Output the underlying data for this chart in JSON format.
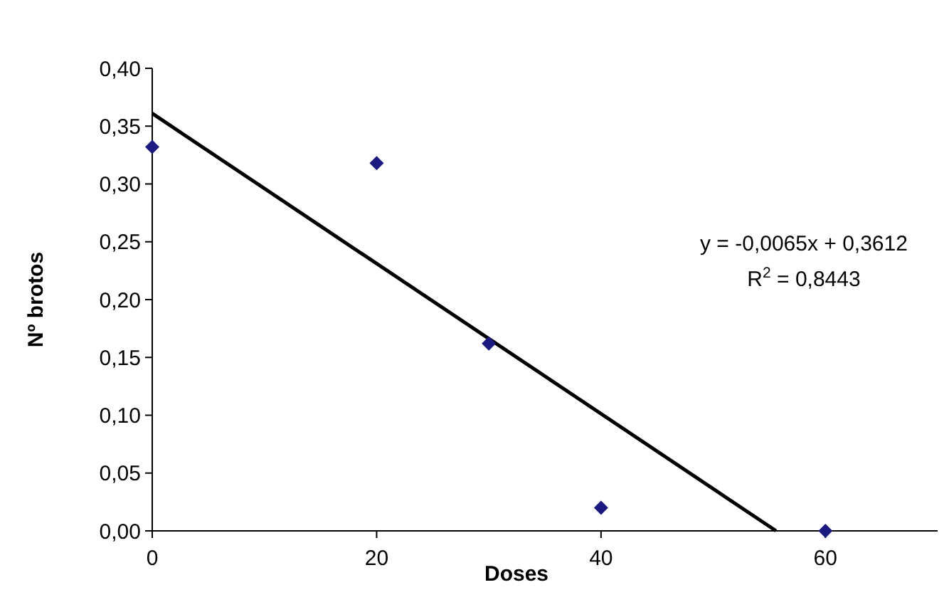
{
  "chart_data": {
    "type": "scatter",
    "xlabel": "Doses",
    "ylabel": "Nº brotos",
    "xlim": [
      0,
      70
    ],
    "xticks": [
      0,
      20,
      40,
      60
    ],
    "ylim": [
      0,
      0.4
    ],
    "yticks": [
      {
        "value": 0,
        "label": "0,00"
      },
      {
        "value": 0.05,
        "label": "0,05"
      },
      {
        "value": 0.1,
        "label": "0,10"
      },
      {
        "value": 0.15,
        "label": "0,15"
      },
      {
        "value": 0.2,
        "label": "0,20"
      },
      {
        "value": 0.25,
        "label": "0,25"
      },
      {
        "value": 0.3,
        "label": "0,30"
      },
      {
        "value": 0.35,
        "label": "0,35"
      },
      {
        "value": 0.4,
        "label": "0,40"
      }
    ],
    "series": [
      {
        "color": "#1a1a80",
        "marker": "diamond",
        "x": [
          0,
          20,
          30,
          40,
          60
        ],
        "values": [
          0.332,
          0.318,
          0.162,
          0.02,
          0.0
        ]
      },
      {
        "type": "line",
        "color": "#000000",
        "line_style": "solid",
        "x": [
          0,
          55.6
        ],
        "values": [
          0.361,
          0
        ]
      }
    ],
    "annotations": [
      {
        "text": "y = -0,0065x + 0,3612"
      },
      {
        "text": "R$^{2}$ = 0,8443"
      }
    ],
    "grid": false
  }
}
